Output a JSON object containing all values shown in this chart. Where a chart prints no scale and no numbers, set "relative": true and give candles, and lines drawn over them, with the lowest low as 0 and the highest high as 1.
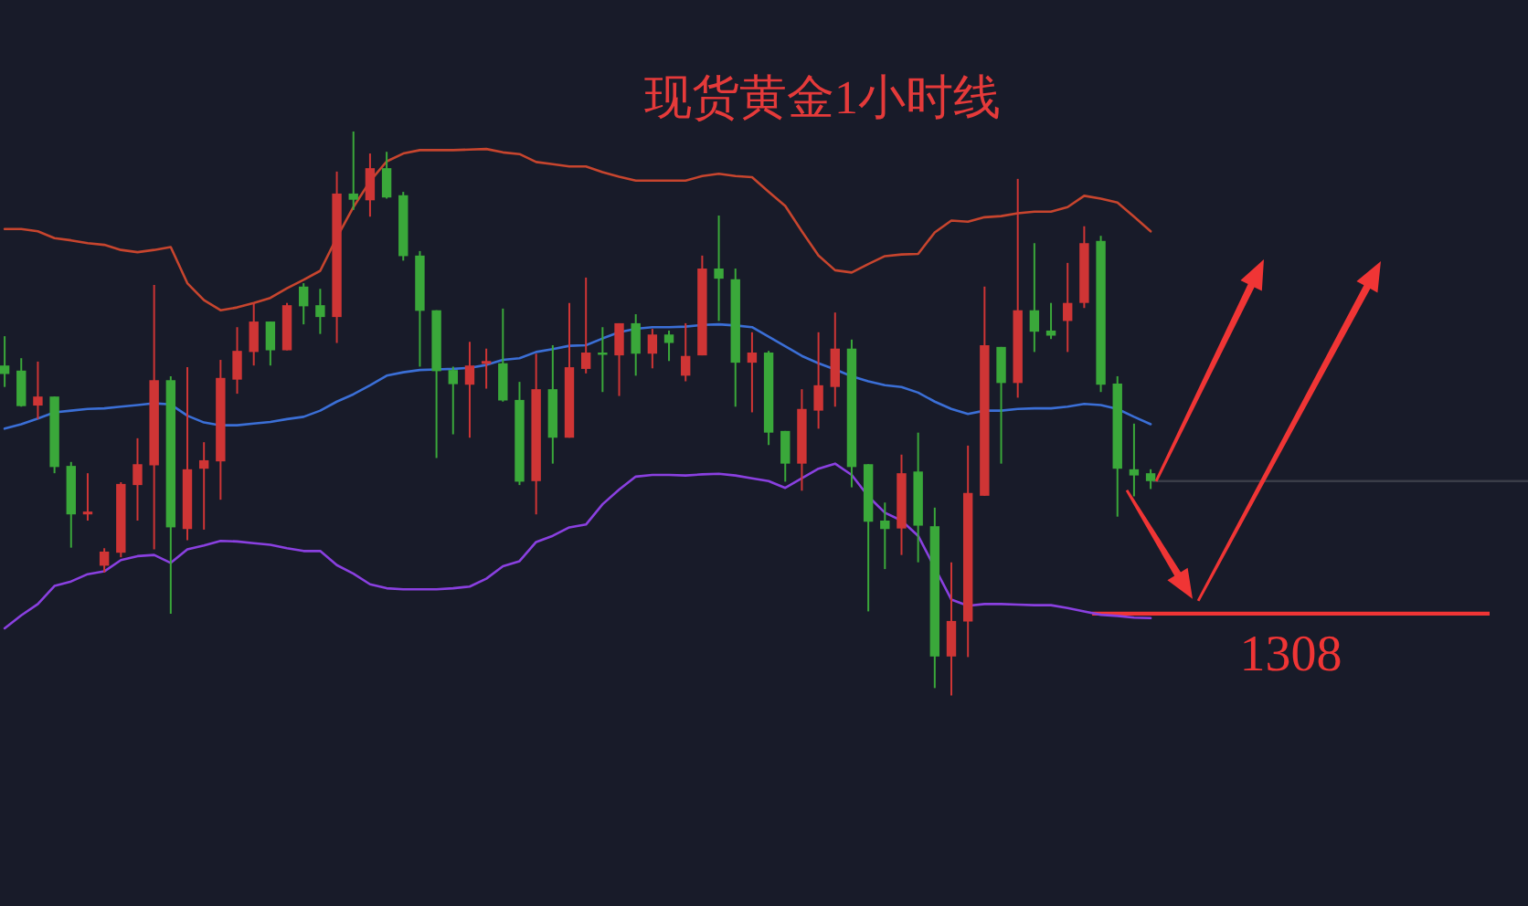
{
  "chart_data": {
    "type": "candlestick",
    "title": "现货黄金1小时线",
    "relative": true,
    "categories": [
      null,
      null,
      null,
      null,
      null,
      null,
      null,
      null,
      null,
      null,
      null,
      null,
      null,
      null,
      null,
      null,
      null,
      null,
      null,
      null,
      null,
      null,
      null,
      null,
      null,
      null,
      null,
      null,
      null,
      null,
      null,
      null,
      null,
      null,
      null,
      null,
      null,
      null,
      null,
      null,
      null,
      null,
      null,
      null,
      null,
      null,
      null,
      null,
      null,
      null,
      null,
      null,
      null,
      null,
      null,
      null,
      null,
      null,
      null,
      null,
      null,
      null,
      null,
      null,
      null,
      null,
      null,
      null,
      null,
      null,
      null,
      null,
      null,
      null,
      null,
      null,
      null,
      null,
      null,
      null,
      null,
      null,
      null,
      null,
      null,
      null,
      null,
      null,
      null,
      null,
      null,
      null
    ],
    "ohlc": [
      [
        0.585,
        0.637,
        0.547,
        0.57
      ],
      [
        0.576,
        0.598,
        0.512,
        0.513
      ],
      [
        0.514,
        0.592,
        0.49,
        0.53
      ],
      [
        0.53,
        0.53,
        0.394,
        0.405
      ],
      [
        0.407,
        0.414,
        0.262,
        0.321
      ],
      [
        0.321,
        0.394,
        0.31,
        0.326
      ],
      [
        0.23,
        0.261,
        0.218,
        0.255
      ],
      [
        0.253,
        0.378,
        0.245,
        0.375
      ],
      [
        0.373,
        0.456,
        0.31,
        0.41
      ],
      [
        0.408,
        0.728,
        0.259,
        0.559
      ],
      [
        0.559,
        0.566,
        0.145,
        0.298
      ],
      [
        0.295,
        0.582,
        0.275,
        0.401
      ],
      [
        0.402,
        0.449,
        0.294,
        0.417
      ],
      [
        0.415,
        0.595,
        0.347,
        0.563
      ],
      [
        0.56,
        0.653,
        0.535,
        0.611
      ],
      [
        0.609,
        0.696,
        0.585,
        0.663
      ],
      [
        0.663,
        0.663,
        0.585,
        0.612
      ],
      [
        0.612,
        0.696,
        0.612,
        0.692
      ],
      [
        0.725,
        0.731,
        0.658,
        0.69
      ],
      [
        0.692,
        0.721,
        0.641,
        0.671
      ],
      [
        0.671,
        0.929,
        0.625,
        0.89
      ],
      [
        0.89,
        1.0,
        0.861,
        0.879
      ],
      [
        0.878,
        0.961,
        0.849,
        0.935
      ],
      [
        0.935,
        0.964,
        0.881,
        0.883
      ],
      [
        0.887,
        0.893,
        0.771,
        0.779
      ],
      [
        0.78,
        0.788,
        0.583,
        0.682
      ],
      [
        0.683,
        0.683,
        0.421,
        0.575
      ],
      [
        0.577,
        0.583,
        0.463,
        0.552
      ],
      [
        0.551,
        0.627,
        0.457,
        0.585
      ],
      [
        0.588,
        0.615,
        0.544,
        0.593
      ],
      [
        0.589,
        0.686,
        0.521,
        0.523
      ],
      [
        0.524,
        0.556,
        0.373,
        0.379
      ],
      [
        0.38,
        0.606,
        0.321,
        0.543
      ],
      [
        0.543,
        0.621,
        0.411,
        0.457
      ],
      [
        0.457,
        0.696,
        0.457,
        0.582
      ],
      [
        0.579,
        0.741,
        0.571,
        0.608
      ],
      [
        0.608,
        0.653,
        0.538,
        0.604
      ],
      [
        0.603,
        0.66,
        0.531,
        0.66
      ],
      [
        0.66,
        0.676,
        0.567,
        0.606
      ],
      [
        0.606,
        0.65,
        0.58,
        0.64
      ],
      [
        0.64,
        0.647,
        0.593,
        0.625
      ],
      [
        0.567,
        0.66,
        0.557,
        0.602
      ],
      [
        0.603,
        0.78,
        0.603,
        0.757
      ],
      [
        0.757,
        0.851,
        0.664,
        0.739
      ],
      [
        0.738,
        0.757,
        0.512,
        0.59
      ],
      [
        0.59,
        0.644,
        0.502,
        0.608
      ],
      [
        0.608,
        0.611,
        0.444,
        0.466
      ],
      [
        0.469,
        0.469,
        0.379,
        0.411
      ],
      [
        0.411,
        0.543,
        0.363,
        0.508
      ],
      [
        0.505,
        0.644,
        0.473,
        0.55
      ],
      [
        0.547,
        0.679,
        0.512,
        0.615
      ],
      [
        0.615,
        0.631,
        0.369,
        0.405
      ],
      [
        0.41,
        0.41,
        0.149,
        0.308
      ],
      [
        0.31,
        0.342,
        0.224,
        0.295
      ],
      [
        0.296,
        0.427,
        0.249,
        0.394
      ],
      [
        0.397,
        0.466,
        0.236,
        0.301
      ],
      [
        0.3,
        0.333,
        0.013,
        0.069
      ],
      [
        0.069,
        0.236,
        0.0,
        0.132
      ],
      [
        0.131,
        0.443,
        0.068,
        0.359
      ],
      [
        0.354,
        0.725,
        0.354,
        0.621
      ],
      [
        0.618,
        0.618,
        0.411,
        0.554
      ],
      [
        0.554,
        0.916,
        0.528,
        0.683
      ],
      [
        0.683,
        0.802,
        0.609,
        0.645
      ],
      [
        0.647,
        0.696,
        0.632,
        0.638
      ],
      [
        0.664,
        0.767,
        0.609,
        0.696
      ],
      [
        0.696,
        0.832,
        0.687,
        0.802
      ],
      [
        0.806,
        0.815,
        0.538,
        0.551
      ],
      [
        0.553,
        0.566,
        0.317,
        0.402
      ],
      [
        0.401,
        0.482,
        0.353,
        0.39
      ],
      [
        0.394,
        0.401,
        0.366,
        0.38
      ],
      null,
      null,
      null,
      null,
      null,
      null,
      null,
      null,
      null,
      null,
      null,
      null,
      null,
      null,
      null,
      null,
      null,
      null,
      null,
      null,
      null,
      null
    ],
    "colors": [
      "#3aa83a",
      "#3aa83a",
      "#cf3535",
      "#3aa83a",
      "#3aa83a",
      "#cf3535",
      "#cf3535",
      "#cf3535",
      "#cf3535",
      "#cf3535",
      "#3aa83a",
      "#cf3535",
      "#cf3535",
      "#cf3535",
      "#cf3535",
      "#cf3535",
      "#3aa83a",
      "#cf3535",
      "#3aa83a",
      "#3aa83a",
      "#cf3535",
      "#3aa83a",
      "#cf3535",
      "#3aa83a",
      "#3aa83a",
      "#3aa83a",
      "#3aa83a",
      "#3aa83a",
      "#cf3535",
      "#cf3535",
      "#3aa83a",
      "#3aa83a",
      "#cf3535",
      "#3aa83a",
      "#cf3535",
      "#cf3535",
      "#3aa83a",
      "#cf3535",
      "#3aa83a",
      "#cf3535",
      "#3aa83a",
      "#cf3535",
      "#cf3535",
      "#3aa83a",
      "#3aa83a",
      "#cf3535",
      "#3aa83a",
      "#3aa83a",
      "#cf3535",
      "#cf3535",
      "#cf3535",
      "#3aa83a",
      "#3aa83a",
      "#3aa83a",
      "#cf3535",
      "#3aa83a",
      "#3aa83a",
      "#cf3535",
      "#cf3535",
      "#cf3535",
      "#3aa83a",
      "#cf3535",
      "#3aa83a",
      "#3aa83a",
      "#cf3535",
      "#cf3535",
      "#3aa83a",
      "#3aa83a",
      "#3aa83a",
      "#3aa83a",
      null,
      null,
      null,
      null,
      null,
      null,
      null,
      null,
      null,
      null,
      null,
      null,
      null,
      null,
      null,
      null,
      null,
      null,
      null,
      null,
      null,
      null
    ],
    "series": [
      {
        "type": "line",
        "color": "#c7452e",
        "values": [
          0.827,
          0.827,
          0.823,
          0.811,
          0.807,
          0.802,
          0.799,
          0.79,
          0.786,
          0.79,
          0.795,
          0.731,
          0.701,
          0.683,
          0.688,
          0.696,
          0.705,
          0.722,
          0.737,
          0.753,
          0.812,
          0.866,
          0.912,
          0.947,
          0.961,
          0.967,
          0.967,
          0.967,
          0.968,
          0.969,
          0.963,
          0.96,
          0.946,
          0.942,
          0.938,
          0.938,
          0.928,
          0.92,
          0.913,
          0.913,
          0.913,
          0.913,
          0.921,
          0.925,
          0.921,
          0.919,
          0.893,
          0.868,
          0.823,
          0.78,
          0.754,
          0.75,
          0.765,
          0.779,
          0.782,
          0.783,
          0.821,
          0.842,
          0.84,
          0.848,
          0.85,
          0.855,
          0.858,
          0.858,
          0.866,
          0.886,
          0.881,
          0.874,
          0.849,
          0.823,
          null,
          null,
          null,
          null,
          null,
          null,
          null,
          null,
          null,
          null,
          null,
          null,
          null,
          null,
          null,
          null,
          null,
          null,
          null,
          null,
          null,
          null
        ]
      },
      {
        "type": "line",
        "color": "#3b6fd6",
        "values": [
          0.473,
          0.481,
          0.491,
          0.502,
          0.505,
          0.508,
          0.509,
          0.512,
          0.515,
          0.518,
          0.516,
          0.496,
          0.484,
          0.479,
          0.479,
          0.482,
          0.485,
          0.49,
          0.494,
          0.505,
          0.521,
          0.534,
          0.55,
          0.567,
          0.573,
          0.577,
          0.578,
          0.579,
          0.581,
          0.586,
          0.595,
          0.598,
          0.609,
          0.614,
          0.62,
          0.621,
          0.633,
          0.644,
          0.65,
          0.653,
          0.653,
          0.654,
          0.657,
          0.658,
          0.656,
          0.653,
          0.636,
          0.619,
          0.602,
          0.589,
          0.578,
          0.566,
          0.557,
          0.55,
          0.547,
          0.537,
          0.521,
          0.508,
          0.499,
          0.505,
          0.505,
          0.508,
          0.509,
          0.509,
          0.512,
          0.517,
          0.515,
          0.508,
          0.494,
          0.481,
          null,
          null,
          null,
          null,
          null,
          null,
          null,
          null,
          null,
          null,
          null,
          null,
          null,
          null,
          null,
          null,
          null,
          null,
          null,
          null,
          null,
          null
        ]
      },
      {
        "type": "line",
        "color": "#8a40e0",
        "values": [
          0.119,
          0.142,
          0.162,
          0.194,
          0.202,
          0.215,
          0.22,
          0.24,
          0.247,
          0.249,
          0.235,
          0.259,
          0.266,
          0.274,
          0.273,
          0.27,
          0.267,
          0.261,
          0.256,
          0.256,
          0.231,
          0.216,
          0.197,
          0.19,
          0.188,
          0.188,
          0.188,
          0.19,
          0.193,
          0.207,
          0.229,
          0.238,
          0.272,
          0.283,
          0.298,
          0.303,
          0.339,
          0.365,
          0.388,
          0.391,
          0.391,
          0.39,
          0.392,
          0.393,
          0.39,
          0.385,
          0.38,
          0.368,
          0.385,
          0.402,
          0.411,
          0.391,
          0.353,
          0.324,
          0.31,
          0.283,
          null,
          0.17,
          0.159,
          0.162,
          0.162,
          0.161,
          0.16,
          0.16,
          0.155,
          0.149,
          0.143,
          0.141,
          0.138,
          0.137,
          null,
          null,
          null,
          null,
          null,
          null,
          null,
          null,
          null,
          null,
          null,
          null,
          null,
          null,
          null,
          null,
          null,
          null,
          null,
          null,
          null,
          null
        ]
      }
    ],
    "ref_lines": [
      {
        "axis": "y",
        "value": 0.38,
        "color": "#3a3d48"
      },
      {
        "axis": "y",
        "value": 0.145,
        "color": "#f03535"
      }
    ],
    "annotations": [
      "1308"
    ]
  }
}
